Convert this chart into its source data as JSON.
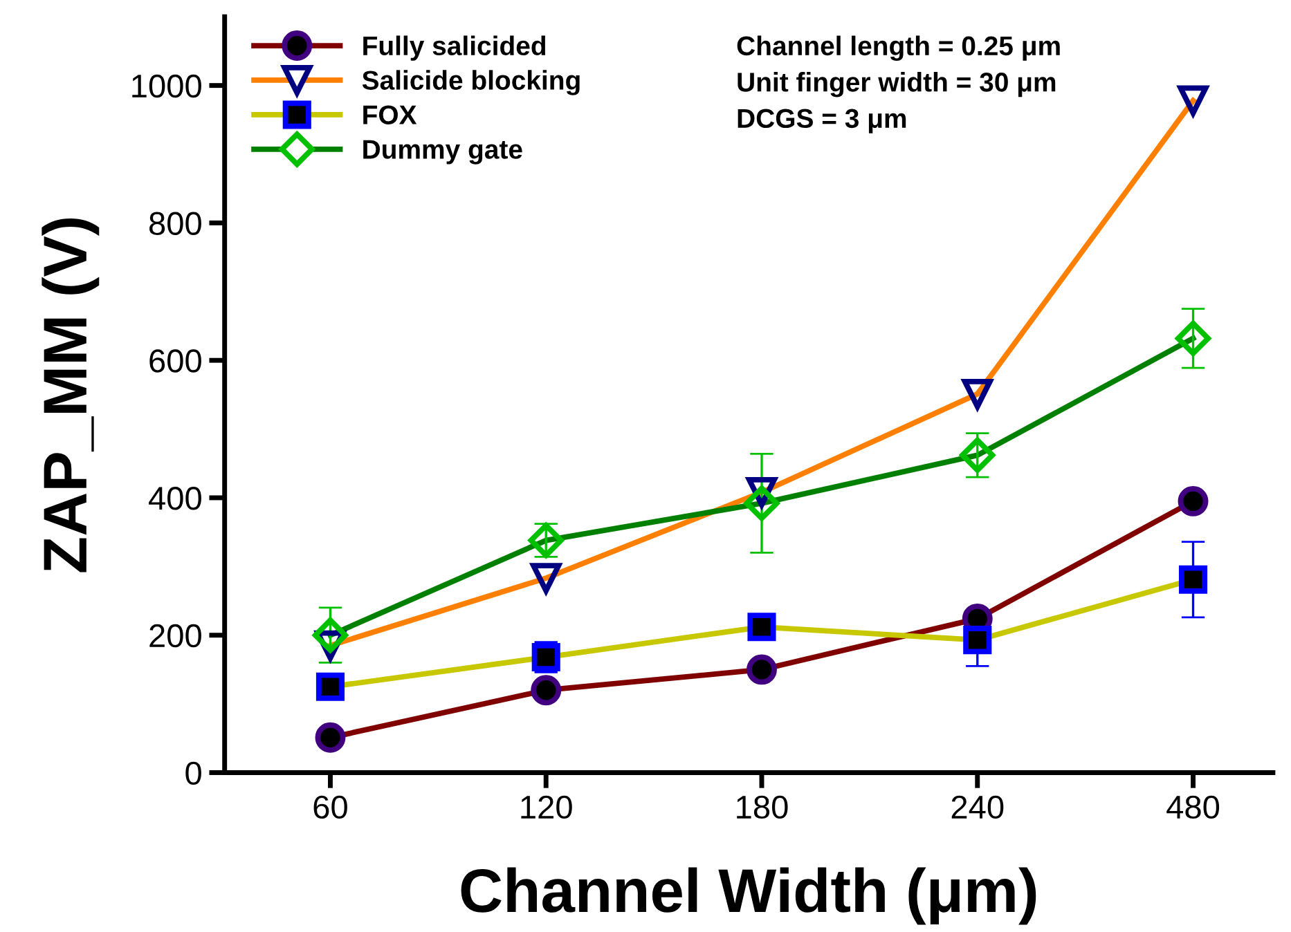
{
  "chart_data": {
    "type": "line",
    "xlabel": "Channel Width (μm)",
    "ylabel": "ZAP_MM (V)",
    "categories": [
      "60",
      "120",
      "180",
      "240",
      "480"
    ],
    "series": [
      {
        "name": "Fully salicided",
        "color": "#800000",
        "marker": "circle",
        "values": [
          51,
          120,
          150,
          224,
          395
        ]
      },
      {
        "name": "Salicide blocking",
        "color": "#ff8000",
        "marker": "triangle",
        "values": [
          185,
          283,
          408,
          551,
          978
        ]
      },
      {
        "name": "FOX",
        "color": "#c8c800",
        "marker": "square",
        "values": [
          125,
          168,
          212,
          193,
          281
        ],
        "errors": [
          null,
          22,
          15,
          38,
          55
        ]
      },
      {
        "name": "Dummy gate",
        "color": "#008000",
        "marker": "diamond",
        "values": [
          200,
          338,
          392,
          462,
          632
        ],
        "errors": [
          40,
          24,
          72,
          32,
          43
        ]
      }
    ],
    "ylim": [
      0,
      1100
    ],
    "yticks": [
      0,
      200,
      400,
      600,
      800,
      1000
    ],
    "grid": false,
    "legend": "top left",
    "annotations": [
      "Channel length = 0.25 μm",
      "Unit finger width = 30 μm",
      "DCGS = 3 μm"
    ]
  }
}
